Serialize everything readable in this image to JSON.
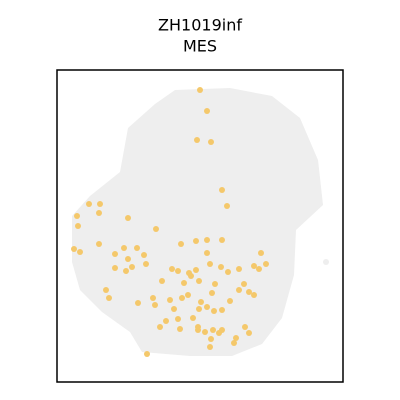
{
  "chart_data": {
    "type": "scatter",
    "title": "ZH1019inf",
    "subtitle": "MES",
    "color": "#f4c86b",
    "tissue_color": "#eeeeee",
    "xlim": [
      0,
      286
    ],
    "ylim": [
      0,
      312
    ],
    "x": [
      143,
      150,
      140,
      154,
      165,
      170,
      20,
      32,
      43,
      42,
      21,
      71,
      99,
      17,
      23,
      42,
      67,
      58,
      71,
      80,
      87,
      89,
      75,
      58,
      69,
      124,
      139,
      150,
      165,
      150,
      204,
      209,
      115,
      121,
      132,
      139,
      134,
      153,
      164,
      171,
      182,
      197,
      202,
      105,
      127,
      142,
      158,
      187,
      182,
      192,
      197,
      173,
      49,
      52,
      96,
      98,
      113,
      125,
      131,
      155,
      144,
      150,
      81,
      117,
      121,
      136,
      142,
      157,
      165,
      109,
      103,
      123,
      141,
      148,
      156,
      162,
      154,
      153,
      141,
      179,
      188,
      192,
      177,
      90,
      165
    ],
    "y": [
      292,
      271,
      242,
      240,
      192,
      176,
      166,
      178,
      178,
      169,
      156,
      164,
      153,
      133,
      130,
      138,
      134,
      128,
      123,
      134,
      127,
      118,
      115,
      114,
      111,
      138,
      141,
      142,
      142,
      129,
      129,
      118,
      113,
      111,
      109,
      112,
      106,
      118,
      115,
      110,
      113,
      116,
      113,
      101,
      99,
      101,
      98,
      98,
      92,
      90,
      87,
      81,
      92,
      84,
      84,
      77,
      82,
      84,
      87,
      89,
      80,
      75,
      79,
      73,
      63,
      64,
      73,
      71,
      72,
      61,
      55,
      53,
      52,
      50,
      52,
      49,
      43,
      35,
      55,
      44,
      55,
      49,
      39,
      28,
      52
    ]
  }
}
